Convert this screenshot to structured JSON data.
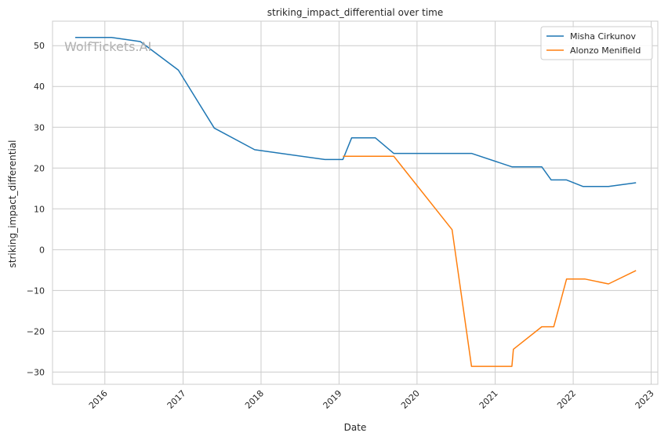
{
  "watermark": "WolfTickets.AI",
  "chart_data": {
    "type": "line",
    "title": "striking_impact_differential over time",
    "xlabel": "Date",
    "ylabel": "striking_impact_differential",
    "x_ticks": [
      "2016",
      "2017",
      "2018",
      "2019",
      "2020",
      "2021",
      "2022",
      "2023"
    ],
    "y_ticks": [
      -30,
      -20,
      -10,
      0,
      10,
      20,
      30,
      40,
      50
    ],
    "xlim": [
      "2015-05-01",
      "2023-02-01"
    ],
    "ylim": [
      -33,
      56
    ],
    "grid": true,
    "legend_position": "top-right",
    "series": [
      {
        "name": "Misha Cirkunov",
        "color": "#1f77b4",
        "points": [
          [
            "2015-08-15",
            52
          ],
          [
            "2016-02-01",
            52
          ],
          [
            "2016-06-15",
            51
          ],
          [
            "2016-12-10",
            44
          ],
          [
            "2017-05-27",
            29.8
          ],
          [
            "2017-12-02",
            24.5
          ],
          [
            "2018-10-27",
            22.1
          ],
          [
            "2019-01-19",
            22.1
          ],
          [
            "2019-03-01",
            27.4
          ],
          [
            "2019-06-20",
            27.4
          ],
          [
            "2019-09-14",
            23.6
          ],
          [
            "2020-09-12",
            23.6
          ],
          [
            "2021-03-20",
            20.3
          ],
          [
            "2021-08-07",
            20.3
          ],
          [
            "2021-09-20",
            17.1
          ],
          [
            "2021-12-01",
            17.1
          ],
          [
            "2022-02-15",
            15.5
          ],
          [
            "2022-06-15",
            15.5
          ],
          [
            "2022-10-22",
            16.4
          ]
        ]
      },
      {
        "name": "Alonzo Menifield",
        "color": "#ff7f0e",
        "points": [
          [
            "2019-01-19",
            22.9
          ],
          [
            "2019-09-14",
            22.9
          ],
          [
            "2020-06-13",
            4.9
          ],
          [
            "2020-09-12",
            -28.6
          ],
          [
            "2021-03-20",
            -28.6
          ],
          [
            "2021-03-27",
            -24.4
          ],
          [
            "2021-08-07",
            -18.9
          ],
          [
            "2021-10-02",
            -18.9
          ],
          [
            "2021-12-01",
            -7.2
          ],
          [
            "2022-02-26",
            -7.2
          ],
          [
            "2022-06-15",
            -8.4
          ],
          [
            "2022-10-22",
            -5.1
          ]
        ]
      }
    ]
  }
}
